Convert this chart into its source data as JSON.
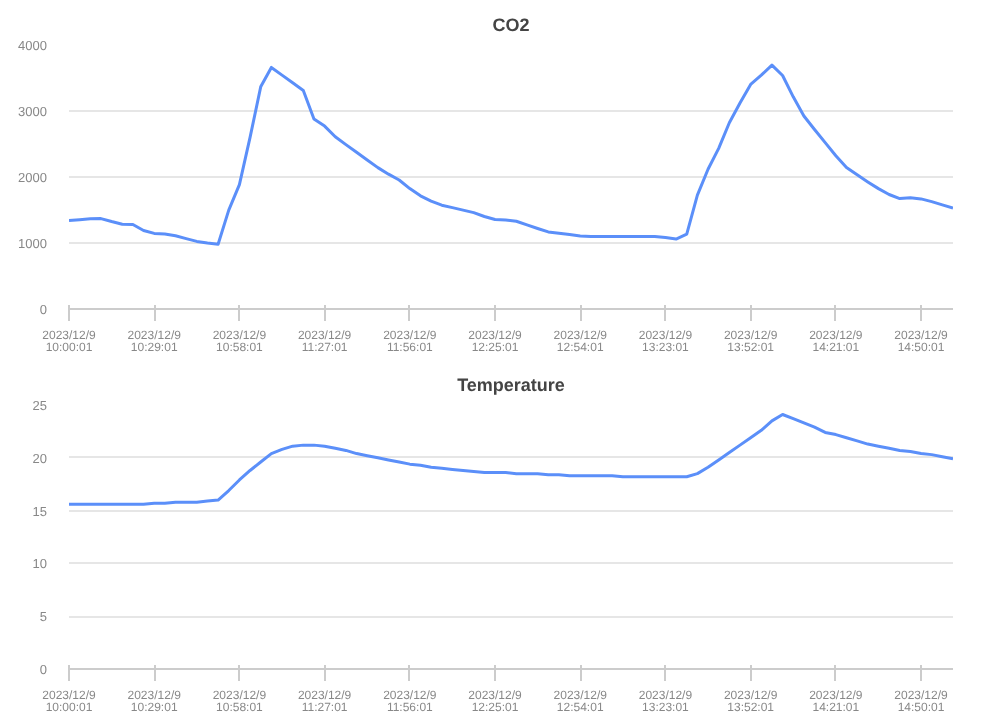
{
  "chart_data": [
    {
      "type": "line",
      "title": "CO2",
      "grid": "y",
      "line_style": "solid",
      "marker": "none",
      "categories": [
        "2023/12/9 10:00:01",
        null,
        null,
        null,
        null,
        null,
        null,
        null,
        "2023/12/9 10:29:01",
        null,
        null,
        null,
        null,
        null,
        null,
        null,
        "2023/12/9 10:58:01",
        null,
        null,
        null,
        null,
        null,
        null,
        null,
        "2023/12/9 11:27:01",
        null,
        null,
        null,
        null,
        null,
        null,
        null,
        "2023/12/9 11:56:01",
        null,
        null,
        null,
        null,
        null,
        null,
        null,
        "2023/12/9 12:25:01",
        null,
        null,
        null,
        null,
        null,
        null,
        null,
        "2023/12/9 12:54:01",
        null,
        null,
        null,
        null,
        null,
        null,
        null,
        "2023/12/9 13:23:01",
        null,
        null,
        null,
        null,
        null,
        null,
        null,
        "2023/12/9 13:52:01",
        null,
        null,
        null,
        null,
        null,
        null,
        null,
        "2023/12/9 14:21:01",
        null,
        null,
        null,
        null,
        null,
        null,
        null,
        "2023/12/9 14:50:01",
        null,
        null,
        null
      ],
      "series": [
        {
          "color": "#5b8ff9",
          "values": [
            1340,
            1353,
            1367,
            1370,
            1325,
            1284,
            1280,
            1190,
            1145,
            1135,
            1109,
            1066,
            1024,
            999,
            980,
            1498,
            1884,
            2601,
            3366,
            3660,
            3544,
            3428,
            3312,
            2879,
            2771,
            2609,
            2490,
            2374,
            2258,
            2142,
            2043,
            1954,
            1825,
            1715,
            1634,
            1573,
            1536,
            1498,
            1460,
            1402,
            1357,
            1348,
            1329,
            1274,
            1220,
            1168,
            1148,
            1128,
            1107,
            1100,
            1100,
            1100,
            1100,
            1100,
            1100,
            1100,
            1083,
            1060,
            1133,
            1726,
            2118,
            2434,
            2822,
            3121,
            3402,
            3543,
            3696,
            3538,
            3215,
            2925,
            2720,
            2520,
            2321,
            2143,
            2033,
            1926,
            1824,
            1735,
            1673,
            1685,
            1668,
            1627,
            1578,
            1530
          ]
        }
      ],
      "ylim": [
        0,
        4000
      ],
      "yticks": [
        0,
        1000,
        2000,
        3000,
        4000
      ]
    },
    {
      "type": "line",
      "title": "Temperature",
      "grid": "y",
      "line_style": "solid",
      "marker": "none",
      "categories": [
        "2023/12/9 10:00:01",
        null,
        null,
        null,
        null,
        null,
        null,
        null,
        "2023/12/9 10:29:01",
        null,
        null,
        null,
        null,
        null,
        null,
        null,
        "2023/12/9 10:58:01",
        null,
        null,
        null,
        null,
        null,
        null,
        null,
        "2023/12/9 11:27:01",
        null,
        null,
        null,
        null,
        null,
        null,
        null,
        "2023/12/9 11:56:01",
        null,
        null,
        null,
        null,
        null,
        null,
        null,
        "2023/12/9 12:25:01",
        null,
        null,
        null,
        null,
        null,
        null,
        null,
        "2023/12/9 12:54:01",
        null,
        null,
        null,
        null,
        null,
        null,
        null,
        "2023/12/9 13:23:01",
        null,
        null,
        null,
        null,
        null,
        null,
        null,
        "2023/12/9 13:52:01",
        null,
        null,
        null,
        null,
        null,
        null,
        null,
        "2023/12/9 14:21:01",
        null,
        null,
        null,
        null,
        null,
        null,
        null,
        "2023/12/9 14:50:01",
        null,
        null,
        null
      ],
      "series": [
        {
          "color": "#5b8ff9",
          "values": [
            15.6,
            15.6,
            15.6,
            15.6,
            15.6,
            15.6,
            15.6,
            15.6,
            15.7,
            15.7,
            15.8,
            15.8,
            15.8,
            15.9,
            16.0,
            16.9,
            17.9,
            18.8,
            19.6,
            20.4,
            20.8,
            21.1,
            21.2,
            21.2,
            21.1,
            20.9,
            20.7,
            20.4,
            20.2,
            20.0,
            19.8,
            19.6,
            19.4,
            19.3,
            19.1,
            19.0,
            18.9,
            18.8,
            18.7,
            18.6,
            18.6,
            18.6,
            18.5,
            18.5,
            18.5,
            18.4,
            18.4,
            18.3,
            18.3,
            18.3,
            18.3,
            18.3,
            18.2,
            18.2,
            18.2,
            18.2,
            18.2,
            18.2,
            18.2,
            18.5,
            19.1,
            19.8,
            20.5,
            21.2,
            21.9,
            22.6,
            23.5,
            24.1,
            23.7,
            23.3,
            22.9,
            22.4,
            22.2,
            21.9,
            21.6,
            21.3,
            21.1,
            20.9,
            20.7,
            20.6,
            20.4,
            20.3,
            20.1,
            19.9
          ]
        }
      ],
      "ylim": [
        0,
        25
      ],
      "yticks": [
        0,
        5,
        10,
        15,
        20,
        25
      ]
    }
  ]
}
